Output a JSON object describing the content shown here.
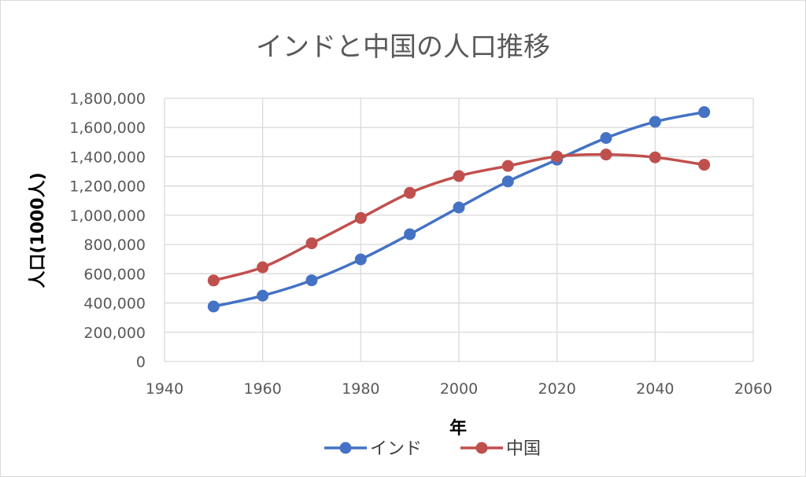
{
  "chart_data": {
    "type": "line",
    "title": "インドと中国の人口推移",
    "xlabel": "年",
    "ylabel": "人口(1000人)",
    "xlim": [
      1940,
      2060
    ],
    "ylim": [
      0,
      1800000
    ],
    "x_ticks": [
      "1940",
      "1960",
      "1980",
      "2000",
      "2020",
      "2040",
      "2060"
    ],
    "y_ticks": [
      "0",
      "200,000",
      "400,000",
      "600,000",
      "800,000",
      "1,000,000",
      "1,200,000",
      "1,400,000",
      "1,600,000",
      "1,800,000"
    ],
    "grid": true,
    "legend": "bottom",
    "x": [
      1950,
      1960,
      1970,
      1980,
      1990,
      2000,
      2010,
      2020,
      2030,
      2040,
      2050
    ],
    "series": [
      {
        "name": "インド",
        "color": "#4472c4",
        "values": [
          376000,
          450000,
          555000,
          698000,
          870000,
          1053000,
          1231000,
          1380000,
          1528000,
          1639000,
          1705000
        ]
      },
      {
        "name": "中国",
        "color": "#c0504d",
        "values": [
          554000,
          644000,
          808000,
          981000,
          1153000,
          1268000,
          1337000,
          1402000,
          1415000,
          1396000,
          1345000
        ]
      }
    ]
  }
}
